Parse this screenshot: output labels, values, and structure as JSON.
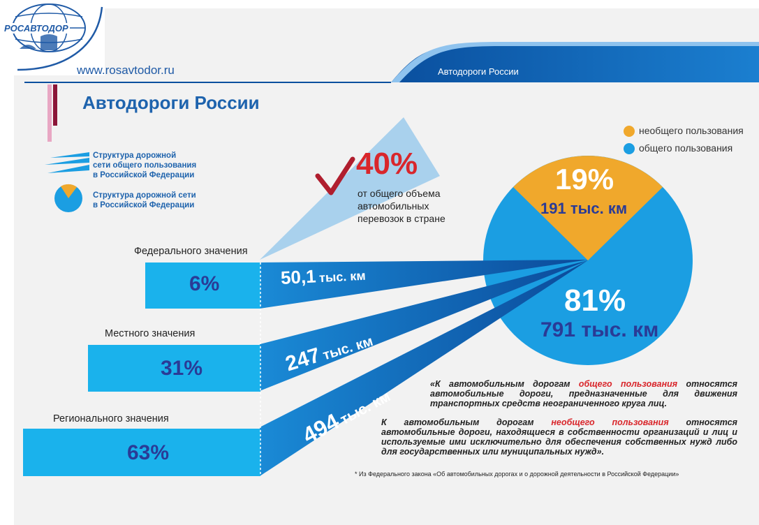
{
  "header": {
    "logo_text": "РОСАВТОДОР",
    "url": "www.rosavtodor.ru",
    "banner_title": "Автодороги России"
  },
  "page_title": "Автодороги России",
  "legend": {
    "item1": "Структура дорожной сети общего пользования в Российской Федерации",
    "item1_lines": [
      "Структура дорожной",
      "сети общего пользования",
      "в Российской Федерации"
    ],
    "item2_lines": [
      "Структура дорожной сети",
      "в Российской Федерации"
    ]
  },
  "callout": {
    "percent": "40%",
    "lines": [
      "от общего объема",
      "автомобильных",
      "перевозок в стране"
    ]
  },
  "pie_legend": {
    "non_public": "необщего пользования",
    "public": "общего пользования",
    "colors": {
      "non_public": "#f0a82c",
      "public": "#1b9ee2"
    }
  },
  "chart_data": {
    "type": "pie",
    "series": [
      {
        "name": "необщего пользования",
        "percent_label": "19%",
        "length_label": "191 тыс. км",
        "value": 19
      },
      {
        "name": "общего пользования",
        "percent_label": "81%",
        "length_label": "791 тыс. км",
        "value": 81
      }
    ]
  },
  "categories": [
    {
      "label": "Федерального значения",
      "percent": "6%",
      "length_num": "50,1",
      "length_unit": "тыс. км"
    },
    {
      "label": "Местного значения",
      "percent": "31%",
      "length_num": "247",
      "length_unit": "тыс. км"
    },
    {
      "label": "Регионального значения",
      "percent": "63%",
      "length_num": "494",
      "length_unit": "тыс. км"
    }
  ],
  "definitions": {
    "public_prefix": "«К автомобильным дорогам ",
    "public_highlight": "общего пользования",
    "public_suffix": " относятся автомобильные дороги, предназначенные для движения транспортных средств неограниченного круга лиц.",
    "nonpublic_prefix": "К автомобильным дорогам ",
    "nonpublic_highlight": "необщего пользования",
    "nonpublic_suffix": " относятся автомобильные дороги, находящиеся в собственности организаций и лиц и используемые ими исключительно для обеспечения собственных нужд либо для государственных или муниципальных нужд».",
    "footnote": "* Из Федерального закона «Об автомобильных дорогах и о дорожной деятельности в Российской Федерации»"
  }
}
